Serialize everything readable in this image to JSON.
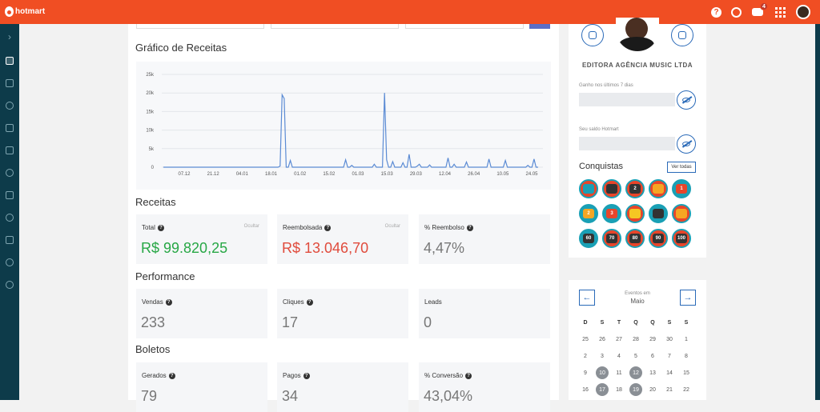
{
  "topbar": {
    "logo": "hotmart",
    "icons": [
      "help-icon",
      "globe-icon",
      "chat-icon",
      "apps-grid-icon",
      "user-avatar"
    ],
    "notification_count": "4"
  },
  "sidebar": {
    "items": [
      "expand-icon",
      "dashboard-icon",
      "products-icon",
      "network-icon",
      "box-icon",
      "cart-icon",
      "refresh-icon",
      "chat-icon",
      "money-icon",
      "chart-icon",
      "settings-icon",
      "support-icon"
    ]
  },
  "chart": {
    "title": "Gráfico de Receitas"
  },
  "chart_data": {
    "type": "line",
    "y_ticks": [
      "25k",
      "20k",
      "15k",
      "10k",
      "5k",
      "0"
    ],
    "x_ticks": [
      "07.12",
      "21.12",
      "04.01",
      "18.01",
      "01.02",
      "15.02",
      "01.03",
      "15.03",
      "29.03",
      "12.04",
      "26.04",
      "10.05",
      "24.05"
    ],
    "ylim": [
      0,
      25000
    ],
    "grid": true,
    "color": "#5b8bd4",
    "series": [
      {
        "values": [
          0,
          0,
          0,
          0,
          0,
          0,
          0,
          0,
          0,
          0,
          0,
          0,
          0,
          0,
          0,
          0,
          0,
          0,
          0,
          0,
          0,
          0,
          0,
          0,
          0,
          0,
          0,
          0,
          0,
          0,
          0,
          0,
          0,
          0,
          0,
          0,
          0,
          0,
          0,
          0,
          0,
          0,
          0,
          0,
          0,
          0,
          0,
          0,
          0,
          0,
          0,
          0,
          0,
          0,
          0,
          0,
          0,
          300,
          19500,
          18500,
          0,
          0,
          1800,
          0,
          0,
          0,
          0,
          0,
          0,
          0,
          0,
          0,
          0,
          0,
          0,
          0,
          0,
          0,
          0,
          0,
          0,
          0,
          0,
          0,
          0,
          0,
          0,
          0,
          0,
          2000,
          0,
          0,
          500,
          0,
          0,
          0,
          0,
          0,
          0,
          0,
          0,
          0,
          0,
          800,
          0,
          0,
          0,
          0,
          20000,
          2000,
          0,
          0,
          1500,
          0,
          0,
          0,
          0,
          1200,
          0,
          0,
          3500,
          0,
          0,
          0,
          300,
          800,
          0,
          0,
          0,
          0,
          600,
          0,
          0,
          0,
          0,
          0,
          0,
          0,
          0,
          2500,
          0,
          0,
          800,
          0,
          0,
          0,
          0,
          0,
          1400,
          0,
          0,
          0,
          0,
          0,
          0,
          0,
          0,
          0,
          0,
          2200,
          0,
          0,
          0,
          0,
          0,
          0,
          0,
          1800,
          0,
          0,
          0,
          0,
          0,
          0,
          0,
          0,
          0,
          0,
          500,
          0,
          0,
          2200,
          0,
          0
        ]
      }
    ]
  },
  "receitas": {
    "title": "Receitas",
    "total": {
      "label": "Total",
      "hide": "Ocultar",
      "value": "R$ 99.820,25"
    },
    "reembolsada": {
      "label": "Reembolsada",
      "hide": "Ocultar",
      "value": "R$ 13.046,70"
    },
    "pct_reembolso": {
      "label": "% Reembolso",
      "value": "4,47%"
    }
  },
  "performance": {
    "title": "Performance",
    "vendas": {
      "label": "Vendas",
      "value": "233"
    },
    "cliques": {
      "label": "Cliques",
      "value": "17"
    },
    "leads": {
      "label": "Leads",
      "value": "0"
    }
  },
  "boletos": {
    "title": "Boletos",
    "gerados": {
      "label": "Gerados",
      "value": "79"
    },
    "pagos": {
      "label": "Pagos",
      "value": "34"
    },
    "conversao": {
      "label": "% Conversão",
      "value": "43,04%"
    }
  },
  "profile": {
    "company": "EDITORA AGÊNCIA MUSIC LTDA",
    "ganho_label": "Ganho nos últimos 7 dias",
    "saldo_label": "Seu saldo Hotmart",
    "conquistas_title": "Conquistas",
    "ver_todas": "Ver todas",
    "medals": [
      {
        "bg": "#e8452a",
        "inner": "#1aa0b5",
        "text": ""
      },
      {
        "bg": "#e8452a",
        "inner": "#333333",
        "text": ""
      },
      {
        "bg": "#e8452a",
        "inner": "#333333",
        "text": "2"
      },
      {
        "bg": "#e8452a",
        "inner": "#f5a623",
        "text": ""
      },
      {
        "bg": "#1aa0b5",
        "inner": "#e8452a",
        "text": "1"
      },
      {
        "bg": "#1aa0b5",
        "inner": "#f5a623",
        "text": "2"
      },
      {
        "bg": "#1aa0b5",
        "inner": "#e8452a",
        "text": "3"
      },
      {
        "bg": "#e8452a",
        "inner": "#f5c623",
        "text": ""
      },
      {
        "bg": "#1aa0b5",
        "inner": "#333333",
        "text": ""
      },
      {
        "bg": "#e8452a",
        "inner": "#f5a623",
        "text": ""
      },
      {
        "bg": "#1aa0b5",
        "inner": "#333333",
        "text": "60"
      },
      {
        "bg": "#e8452a",
        "inner": "#333333",
        "text": "70"
      },
      {
        "bg": "#e8452a",
        "inner": "#333333",
        "text": "80"
      },
      {
        "bg": "#e8452a",
        "inner": "#333333",
        "text": "90"
      },
      {
        "bg": "#e8452a",
        "inner": "#333333",
        "text": "100"
      }
    ]
  },
  "calendar": {
    "sub": "Eventos em",
    "month": "Maio",
    "weekdays": [
      "D",
      "S",
      "T",
      "Q",
      "Q",
      "S",
      "S"
    ],
    "weeks": [
      [
        "25",
        "26",
        "27",
        "28",
        "29",
        "30",
        "1"
      ],
      [
        "2",
        "3",
        "4",
        "5",
        "6",
        "7",
        "8"
      ],
      [
        "9",
        "10",
        "11",
        "12",
        "13",
        "14",
        "15"
      ],
      [
        "16",
        "17",
        "18",
        "19",
        "20",
        "21",
        "22"
      ]
    ],
    "marked": [
      "10",
      "12",
      "17",
      "19"
    ]
  }
}
